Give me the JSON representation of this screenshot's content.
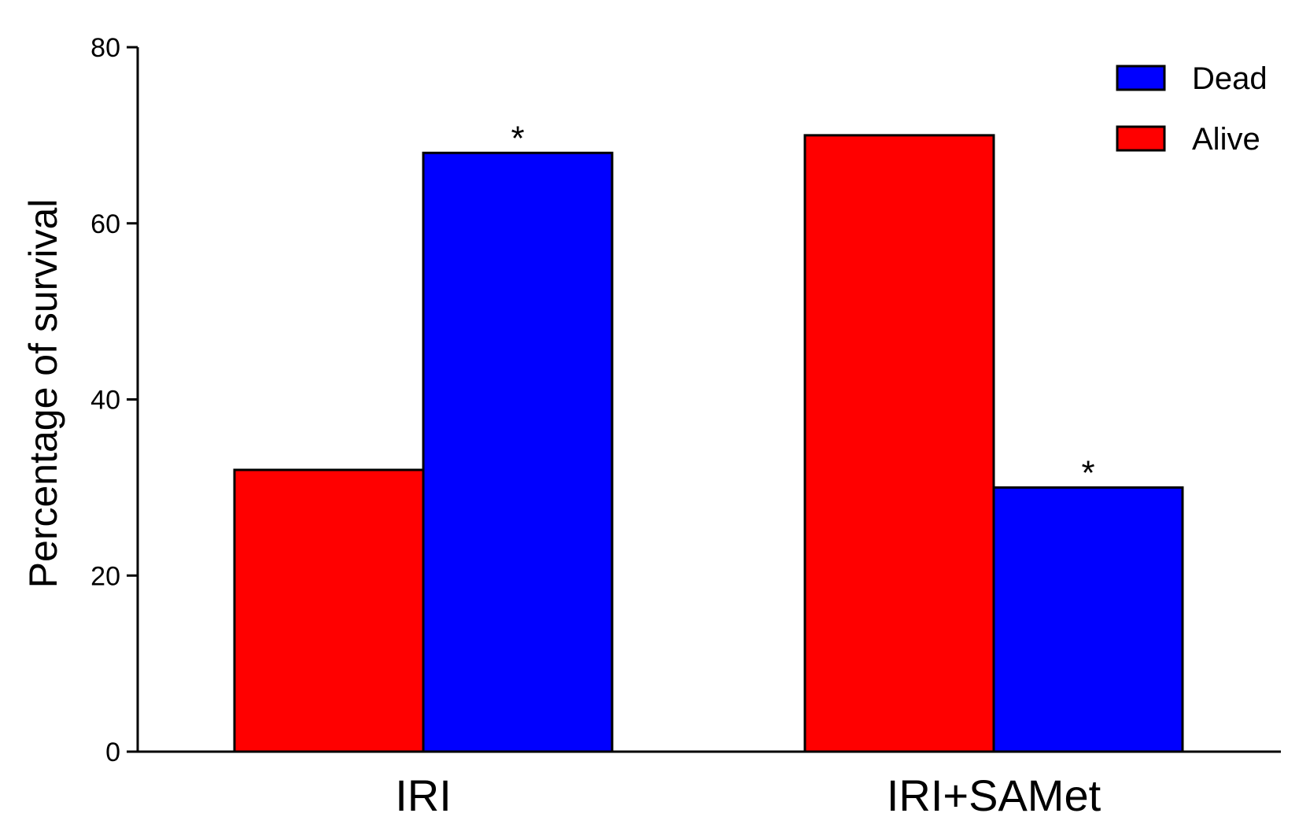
{
  "chart_data": {
    "type": "bar",
    "title": "",
    "xlabel": "",
    "ylabel": "Percentage of survival",
    "ylim": [
      0,
      80
    ],
    "yticks": [
      "0",
      "20",
      "40",
      "60",
      "80"
    ],
    "categories": [
      "IRI",
      "IRI+SAMet"
    ],
    "series": [
      {
        "name": "Alive",
        "color": "#ff0000",
        "values": [
          32,
          70
        ]
      },
      {
        "name": "Dead",
        "color": "#0000ff",
        "values": [
          68,
          30
        ]
      }
    ],
    "legend": {
      "position": "top-right",
      "order": [
        "Dead",
        "Alive"
      ]
    },
    "annotations": [
      {
        "category": "IRI",
        "series": "Dead",
        "text": "*"
      },
      {
        "category": "IRI+SAMet",
        "series": "Dead",
        "text": "*"
      }
    ],
    "grid": false
  }
}
